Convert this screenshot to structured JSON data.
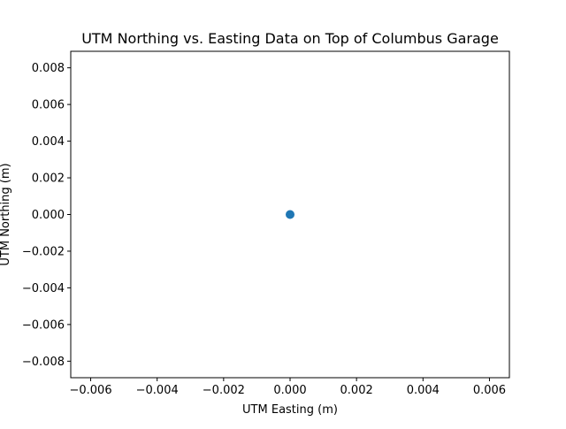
{
  "chart_data": {
    "type": "scatter",
    "title": "UTM Northing vs. Easting Data on Top of Columbus Garage",
    "xlabel": "UTM Easting (m)",
    "ylabel": "UTM Northing (m)",
    "xlim": [
      -0.0066,
      0.0066
    ],
    "ylim": [
      -0.0089,
      0.0089
    ],
    "xticks": [
      -0.006,
      -0.004,
      -0.002,
      0.0,
      0.002,
      0.004,
      0.006
    ],
    "xtick_labels": [
      "−0.006",
      "−0.004",
      "−0.002",
      "0.000",
      "0.002",
      "0.004",
      "0.006"
    ],
    "yticks": [
      -0.008,
      -0.006,
      -0.004,
      -0.002,
      0.0,
      0.002,
      0.004,
      0.006,
      0.008
    ],
    "ytick_labels": [
      "−0.008",
      "−0.006",
      "−0.004",
      "−0.002",
      "0.000",
      "0.002",
      "0.004",
      "0.006",
      "0.008"
    ],
    "grid": false,
    "points": [
      {
        "x": 0.0,
        "y": 0.0
      }
    ],
    "marker_color": "#1f77b4"
  }
}
